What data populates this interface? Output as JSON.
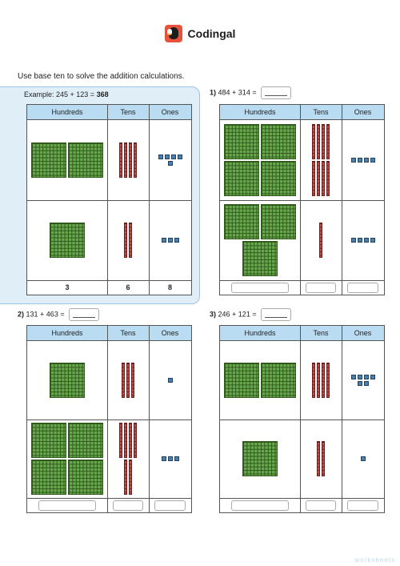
{
  "brand": {
    "name": "Codingal"
  },
  "instruction": "Use base ten to solve the addition calculations.",
  "headers": [
    "Hundreds",
    "Tens",
    "Ones"
  ],
  "example": {
    "prefix": "Example: 245 + 123 = ",
    "answer": "368",
    "row1": {
      "hundreds": 2,
      "tens": 4,
      "ones": 5
    },
    "row2": {
      "hundreds": 1,
      "tens": 2,
      "ones": 3
    },
    "footer": [
      "3",
      "6",
      "8"
    ]
  },
  "questions": [
    {
      "num": "1)",
      "text": "484 + 314 =",
      "row1": {
        "hundreds": 4,
        "tens": 8,
        "ones": 4
      },
      "row2": {
        "hundreds": 3,
        "tens": 1,
        "ones": 4
      }
    },
    {
      "num": "2)",
      "text": "131 + 463 =",
      "row1": {
        "hundreds": 1,
        "tens": 3,
        "ones": 1
      },
      "row2": {
        "hundreds": 4,
        "tens": 6,
        "ones": 3
      }
    },
    {
      "num": "3)",
      "text": "246 + 121 =",
      "row1": {
        "hundreds": 2,
        "tens": 4,
        "ones": 6
      },
      "row2": {
        "hundreds": 1,
        "tens": 2,
        "ones": 1
      }
    }
  ],
  "watermark": "worksheets"
}
